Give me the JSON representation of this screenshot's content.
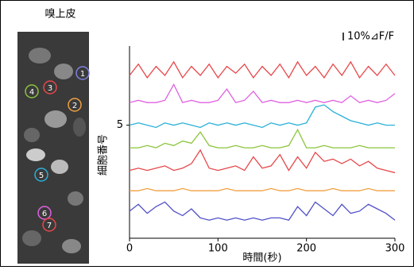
{
  "image": {
    "title": "嗅上皮",
    "cell_labels": [
      "1",
      "2",
      "3",
      "4",
      "5",
      "6",
      "7"
    ]
  },
  "chart_data": {
    "type": "line",
    "x": [
      0,
      10,
      20,
      30,
      40,
      50,
      60,
      70,
      80,
      90,
      100,
      110,
      120,
      130,
      140,
      150,
      160,
      170,
      180,
      190,
      200,
      210,
      220,
      230,
      240,
      250,
      260,
      270,
      280,
      290,
      300
    ],
    "series": [
      {
        "color": "#e8474a",
        "values": [
          7.2,
          7.7,
          7.1,
          7.6,
          7.2,
          7.8,
          7.1,
          7.6,
          7.2,
          7.7,
          7.1,
          7.6,
          7.3,
          7.7,
          7.1,
          7.6,
          7.2,
          7.7,
          7.1,
          7.8,
          7.2,
          7.6,
          7.1,
          7.7,
          7.2,
          7.8,
          7.1,
          7.6,
          7.2,
          7.7,
          7.2
        ]
      },
      {
        "color": "#e060e0",
        "values": [
          6.0,
          6.1,
          6.0,
          6.0,
          6.1,
          6.8,
          6.0,
          6.1,
          6.0,
          6.0,
          6.1,
          6.6,
          6.0,
          6.1,
          6.5,
          6.0,
          6.1,
          6.0,
          6.0,
          6.1,
          6.0,
          6.1,
          6.0,
          6.1,
          6.0,
          6.3,
          6.0,
          6.1,
          6.0,
          6.1,
          6.4
        ]
      },
      {
        "color": "#2ab0d8",
        "values": [
          5.0,
          5.1,
          5.0,
          4.9,
          5.1,
          5.0,
          5.1,
          5.0,
          4.9,
          5.1,
          5.0,
          5.1,
          5.0,
          5.1,
          5.0,
          4.9,
          5.1,
          5.0,
          5.1,
          5.0,
          5.1,
          5.8,
          5.9,
          5.6,
          5.4,
          5.2,
          5.1,
          5.0,
          5.1,
          5.0,
          5.0
        ]
      },
      {
        "color": "#8cc43c",
        "values": [
          4.0,
          4.0,
          4.1,
          4.0,
          4.2,
          4.1,
          4.3,
          4.2,
          4.7,
          4.1,
          4.0,
          4.0,
          4.1,
          4.0,
          4.0,
          4.1,
          4.0,
          4.0,
          4.1,
          4.8,
          4.0,
          4.0,
          4.1,
          4.0,
          4.0,
          4.0,
          4.1,
          4.0,
          4.0,
          4.0,
          4.0
        ]
      },
      {
        "color": "#e8474a",
        "values": [
          3.0,
          3.1,
          3.0,
          3.1,
          3.2,
          3.0,
          3.1,
          3.3,
          3.9,
          3.1,
          3.0,
          3.1,
          3.2,
          3.0,
          3.6,
          3.1,
          3.2,
          3.7,
          3.0,
          3.6,
          3.1,
          3.8,
          3.4,
          3.5,
          3.3,
          3.5,
          3.2,
          3.4,
          3.1,
          3.0,
          2.9
        ]
      },
      {
        "color": "#f0a040",
        "values": [
          2.1,
          2.1,
          2.2,
          2.1,
          2.1,
          2.1,
          2.2,
          2.1,
          2.1,
          2.1,
          2.1,
          2.2,
          2.1,
          2.1,
          2.1,
          2.1,
          2.2,
          2.1,
          2.1,
          2.2,
          2.1,
          2.1,
          2.1,
          2.2,
          2.1,
          2.1,
          2.1,
          2.2,
          2.1,
          2.1,
          2.1
        ]
      },
      {
        "color": "#5050c8",
        "values": [
          1.2,
          1.5,
          1.1,
          1.4,
          1.6,
          1.2,
          1.0,
          1.3,
          0.9,
          0.8,
          0.9,
          0.8,
          0.9,
          0.8,
          0.9,
          0.8,
          0.9,
          0.9,
          0.8,
          1.4,
          1.0,
          1.6,
          1.3,
          1.0,
          1.5,
          1.1,
          1.2,
          1.5,
          1.3,
          1.1,
          0.8
        ]
      }
    ],
    "ylim": [
      0,
      8.5
    ],
    "yticks": [
      5
    ],
    "xlim": [
      0,
      300
    ],
    "xticks": [
      0,
      100,
      200,
      300
    ],
    "xlabel": "時間(秒)",
    "ylabel": "細胞番号",
    "scale_bar_label": "10%⊿F/F"
  }
}
